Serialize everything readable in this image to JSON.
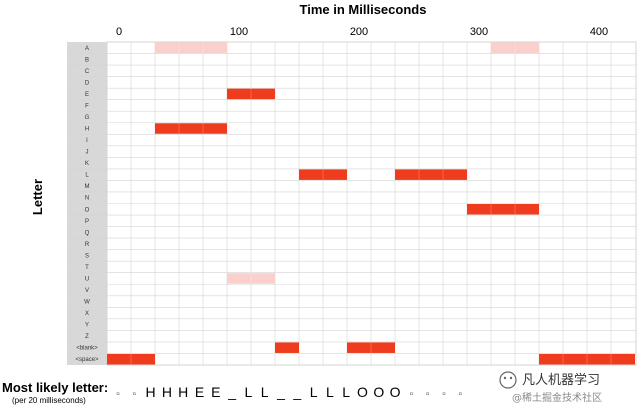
{
  "chart_data": {
    "type": "heatmap",
    "title": "Time in Milliseconds",
    "xlabel": "Time in Milliseconds",
    "ylabel": "Letter",
    "x_ticks": [
      0,
      100,
      200,
      300,
      400
    ],
    "xlim": [
      -10,
      430
    ],
    "step_ms": 20,
    "rows": [
      "A",
      "B",
      "C",
      "D",
      "E",
      "F",
      "G",
      "H",
      "I",
      "J",
      "K",
      "L",
      "M",
      "N",
      "O",
      "P",
      "Q",
      "R",
      "S",
      "T",
      "U",
      "V",
      "W",
      "X",
      "Y",
      "Z",
      "<blank>",
      "<space>"
    ],
    "cells": [
      {
        "row": "A",
        "start": 30,
        "end": 90,
        "strength": "weak"
      },
      {
        "row": "A",
        "start": 310,
        "end": 350,
        "strength": "weak"
      },
      {
        "row": "E",
        "start": 90,
        "end": 130,
        "strength": "strong"
      },
      {
        "row": "H",
        "start": 30,
        "end": 90,
        "strength": "strong"
      },
      {
        "row": "L",
        "start": 150,
        "end": 190,
        "strength": "strong"
      },
      {
        "row": "L",
        "start": 230,
        "end": 290,
        "strength": "strong"
      },
      {
        "row": "O",
        "start": 290,
        "end": 350,
        "strength": "strong"
      },
      {
        "row": "U",
        "start": 90,
        "end": 130,
        "strength": "weak"
      },
      {
        "row": "<blank>",
        "start": 130,
        "end": 150,
        "strength": "strong"
      },
      {
        "row": "<blank>",
        "start": 190,
        "end": 230,
        "strength": "strong"
      },
      {
        "row": "<space>",
        "start": -10,
        "end": 30,
        "strength": "strong"
      },
      {
        "row": "<space>",
        "start": 350,
        "end": 430,
        "strength": "strong"
      }
    ],
    "grid": true,
    "colors": {
      "strong": "#f03c1e",
      "weak": "#fbd0cc",
      "label_column": "#d8d8d8",
      "grid": "#d4d4d4"
    }
  },
  "most_likely": {
    "label": "Most likely letter:",
    "sublabel": "(per 20 milliseconds)",
    "sequence": [
      "▫",
      "▫",
      "H",
      "H",
      "H",
      "E",
      "E",
      "_",
      "L",
      "L",
      "_",
      "_",
      "L",
      "L",
      "L",
      "O",
      "O",
      "O",
      "▫",
      "▫",
      "▫",
      "▫"
    ]
  },
  "watermark": {
    "text": "凡人机器学习",
    "subtext": "@稀土掘金技术社区"
  }
}
